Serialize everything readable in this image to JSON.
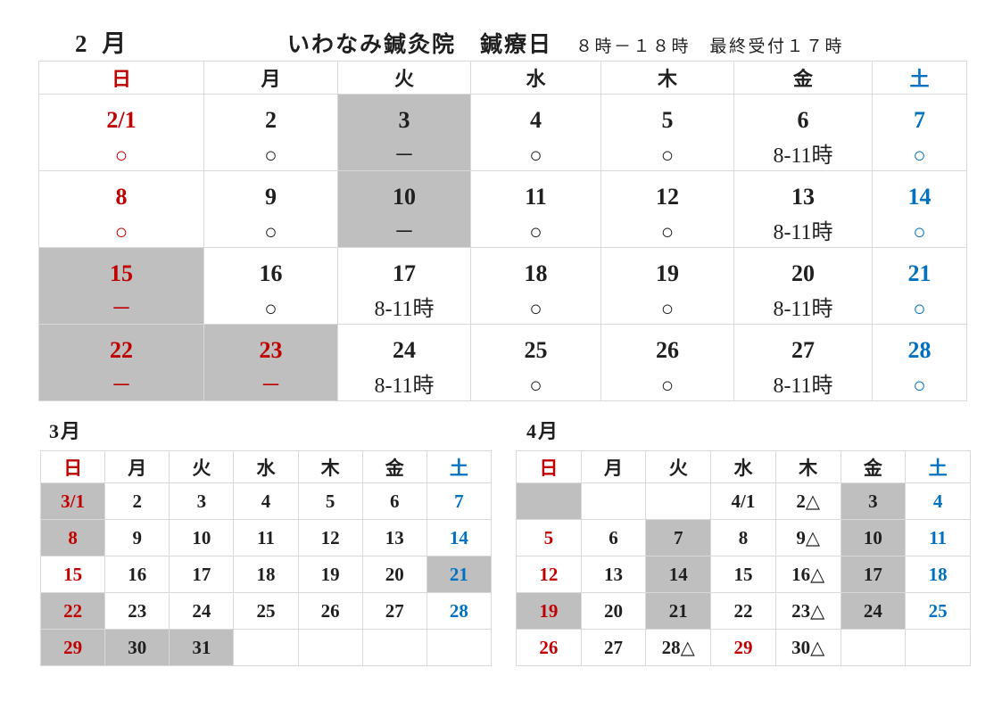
{
  "header": {
    "month_label": "2 月",
    "clinic_title": "いわなみ鍼灸院　鍼療日",
    "hours_note": "８時－１８時　最終受付１７時"
  },
  "colors": {
    "sunday_red": "#c00000",
    "saturday_blue": "#0070c0",
    "closed_gray_bg": "#bfbfbf",
    "grid_border": "#d9d9d9",
    "ink": "#1f1f1f"
  },
  "day_headers": [
    {
      "label": "日",
      "tone": "sun"
    },
    {
      "label": "月",
      "tone": "wd"
    },
    {
      "label": "火",
      "tone": "wd"
    },
    {
      "label": "水",
      "tone": "wd"
    },
    {
      "label": "木",
      "tone": "wd"
    },
    {
      "label": "金",
      "tone": "wd"
    },
    {
      "label": "土",
      "tone": "sat"
    }
  ],
  "february": {
    "weeks": [
      [
        {
          "d": "2/1",
          "s": "○",
          "tone": "sun",
          "gray": false
        },
        {
          "d": "2",
          "s": "○",
          "tone": "wd",
          "gray": false
        },
        {
          "d": "3",
          "s": "－",
          "tone": "wd",
          "gray": true
        },
        {
          "d": "4",
          "s": "○",
          "tone": "wd",
          "gray": false
        },
        {
          "d": "5",
          "s": "○",
          "tone": "wd",
          "gray": false
        },
        {
          "d": "6",
          "s": "8-11時",
          "tone": "wd",
          "gray": false
        },
        {
          "d": "7",
          "s": "○",
          "tone": "sat",
          "gray": false
        }
      ],
      [
        {
          "d": "8",
          "s": "○",
          "tone": "sun",
          "gray": false
        },
        {
          "d": "9",
          "s": "○",
          "tone": "wd",
          "gray": false
        },
        {
          "d": "10",
          "s": "－",
          "tone": "wd",
          "gray": true
        },
        {
          "d": "11",
          "s": "○",
          "tone": "wd",
          "gray": false
        },
        {
          "d": "12",
          "s": "○",
          "tone": "wd",
          "gray": false
        },
        {
          "d": "13",
          "s": "8-11時",
          "tone": "wd",
          "gray": false
        },
        {
          "d": "14",
          "s": "○",
          "tone": "sat",
          "gray": false
        }
      ],
      [
        {
          "d": "15",
          "s": "－",
          "tone": "sun",
          "gray": true
        },
        {
          "d": "16",
          "s": "○",
          "tone": "wd",
          "gray": false
        },
        {
          "d": "17",
          "s": "8-11時",
          "tone": "wd",
          "gray": false
        },
        {
          "d": "18",
          "s": "○",
          "tone": "wd",
          "gray": false
        },
        {
          "d": "19",
          "s": "○",
          "tone": "wd",
          "gray": false
        },
        {
          "d": "20",
          "s": "8-11時",
          "tone": "wd",
          "gray": false
        },
        {
          "d": "21",
          "s": "○",
          "tone": "sat",
          "gray": false
        }
      ],
      [
        {
          "d": "22",
          "s": "－",
          "tone": "sun",
          "gray": true
        },
        {
          "d": "23",
          "s": "－",
          "tone": "sun",
          "gray": true
        },
        {
          "d": "24",
          "s": "8-11時",
          "tone": "wd",
          "gray": false
        },
        {
          "d": "25",
          "s": "○",
          "tone": "wd",
          "gray": false
        },
        {
          "d": "26",
          "s": "○",
          "tone": "wd",
          "gray": false
        },
        {
          "d": "27",
          "s": "8-11時",
          "tone": "wd",
          "gray": false
        },
        {
          "d": "28",
          "s": "○",
          "tone": "sat",
          "gray": false
        }
      ]
    ]
  },
  "march": {
    "label": "3月",
    "weeks": [
      [
        {
          "d": "3/1",
          "tone": "sun",
          "gray": true
        },
        {
          "d": "2",
          "tone": "wd",
          "gray": false
        },
        {
          "d": "3",
          "tone": "wd",
          "gray": false
        },
        {
          "d": "4",
          "tone": "wd",
          "gray": false
        },
        {
          "d": "5",
          "tone": "wd",
          "gray": false
        },
        {
          "d": "6",
          "tone": "wd",
          "gray": false
        },
        {
          "d": "7",
          "tone": "sat",
          "gray": false
        }
      ],
      [
        {
          "d": "8",
          "tone": "sun",
          "gray": true
        },
        {
          "d": "9",
          "tone": "wd",
          "gray": false
        },
        {
          "d": "10",
          "tone": "wd",
          "gray": false
        },
        {
          "d": "11",
          "tone": "wd",
          "gray": false
        },
        {
          "d": "12",
          "tone": "wd",
          "gray": false
        },
        {
          "d": "13",
          "tone": "wd",
          "gray": false
        },
        {
          "d": "14",
          "tone": "sat",
          "gray": false
        }
      ],
      [
        {
          "d": "15",
          "tone": "sun",
          "gray": false
        },
        {
          "d": "16",
          "tone": "wd",
          "gray": false
        },
        {
          "d": "17",
          "tone": "wd",
          "gray": false
        },
        {
          "d": "18",
          "tone": "wd",
          "gray": false
        },
        {
          "d": "19",
          "tone": "wd",
          "gray": false
        },
        {
          "d": "20",
          "tone": "wd",
          "gray": false
        },
        {
          "d": "21",
          "tone": "sat",
          "gray": true
        }
      ],
      [
        {
          "d": "22",
          "tone": "sun",
          "gray": true
        },
        {
          "d": "23",
          "tone": "wd",
          "gray": false
        },
        {
          "d": "24",
          "tone": "wd",
          "gray": false
        },
        {
          "d": "25",
          "tone": "wd",
          "gray": false
        },
        {
          "d": "26",
          "tone": "wd",
          "gray": false
        },
        {
          "d": "27",
          "tone": "wd",
          "gray": false
        },
        {
          "d": "28",
          "tone": "sat",
          "gray": false
        }
      ],
      [
        {
          "d": "29",
          "tone": "sun",
          "gray": true
        },
        {
          "d": "30",
          "tone": "wd",
          "gray": true
        },
        {
          "d": "31",
          "tone": "wd",
          "gray": true
        },
        {
          "d": "",
          "tone": "wd",
          "gray": false
        },
        {
          "d": "",
          "tone": "wd",
          "gray": false
        },
        {
          "d": "",
          "tone": "wd",
          "gray": false
        },
        {
          "d": "",
          "tone": "wd",
          "gray": false
        }
      ]
    ]
  },
  "april": {
    "label": "4月",
    "weeks": [
      [
        {
          "d": "",
          "tone": "sun",
          "gray": true
        },
        {
          "d": "",
          "tone": "wd",
          "gray": false
        },
        {
          "d": "",
          "tone": "wd",
          "gray": false
        },
        {
          "d": "4/1",
          "tone": "wd",
          "gray": false
        },
        {
          "d": "2△",
          "tone": "wd",
          "gray": false
        },
        {
          "d": "3",
          "tone": "wd",
          "gray": true
        },
        {
          "d": "4",
          "tone": "sat",
          "gray": false
        }
      ],
      [
        {
          "d": "5",
          "tone": "sun",
          "gray": false
        },
        {
          "d": "6",
          "tone": "wd",
          "gray": false
        },
        {
          "d": "7",
          "tone": "wd",
          "gray": true
        },
        {
          "d": "8",
          "tone": "wd",
          "gray": false
        },
        {
          "d": "9△",
          "tone": "wd",
          "gray": false
        },
        {
          "d": "10",
          "tone": "wd",
          "gray": true
        },
        {
          "d": "11",
          "tone": "sat",
          "gray": false
        }
      ],
      [
        {
          "d": "12",
          "tone": "sun",
          "gray": false
        },
        {
          "d": "13",
          "tone": "wd",
          "gray": false
        },
        {
          "d": "14",
          "tone": "wd",
          "gray": true
        },
        {
          "d": "15",
          "tone": "wd",
          "gray": false
        },
        {
          "d": "16△",
          "tone": "wd",
          "gray": false
        },
        {
          "d": "17",
          "tone": "wd",
          "gray": true
        },
        {
          "d": "18",
          "tone": "sat",
          "gray": false
        }
      ],
      [
        {
          "d": "19",
          "tone": "sun",
          "gray": true
        },
        {
          "d": "20",
          "tone": "wd",
          "gray": false
        },
        {
          "d": "21",
          "tone": "wd",
          "gray": true
        },
        {
          "d": "22",
          "tone": "wd",
          "gray": false
        },
        {
          "d": "23△",
          "tone": "wd",
          "gray": false
        },
        {
          "d": "24",
          "tone": "wd",
          "gray": true
        },
        {
          "d": "25",
          "tone": "sat",
          "gray": false
        }
      ],
      [
        {
          "d": "26",
          "tone": "sun",
          "gray": false
        },
        {
          "d": "27",
          "tone": "wd",
          "gray": false
        },
        {
          "d": "28△",
          "tone": "wd",
          "gray": false
        },
        {
          "d": "29",
          "tone": "sun",
          "gray": false
        },
        {
          "d": "30△",
          "tone": "wd",
          "gray": false
        },
        {
          "d": "",
          "tone": "wd",
          "gray": false
        },
        {
          "d": "",
          "tone": "wd",
          "gray": false
        }
      ]
    ]
  }
}
